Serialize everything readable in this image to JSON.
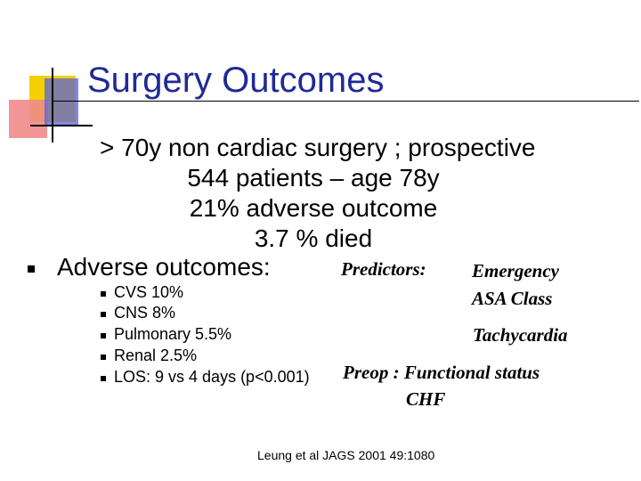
{
  "slide": {
    "title": "Surgery Outcomes",
    "intro_lines": [
      "> 70y non cardiac surgery ; prospective",
      "544 patients – age 78y",
      "21% adverse outcome",
      "3.7 % died"
    ],
    "adverse_heading": "Adverse outcomes:",
    "outcomes": [
      "CVS 10%",
      "CNS 8%",
      "Pulmonary 5.5%",
      "Renal 2.5%",
      "LOS: 9 vs 4 days (p<0.001)"
    ],
    "predictors_label": "Predictors:",
    "predictors": [
      "Emergency",
      "ASA Class",
      "Tachycardia",
      "Preop : Functional status",
      "CHF"
    ],
    "citation": "Leung et al JAGS 2001 49:1080"
  }
}
